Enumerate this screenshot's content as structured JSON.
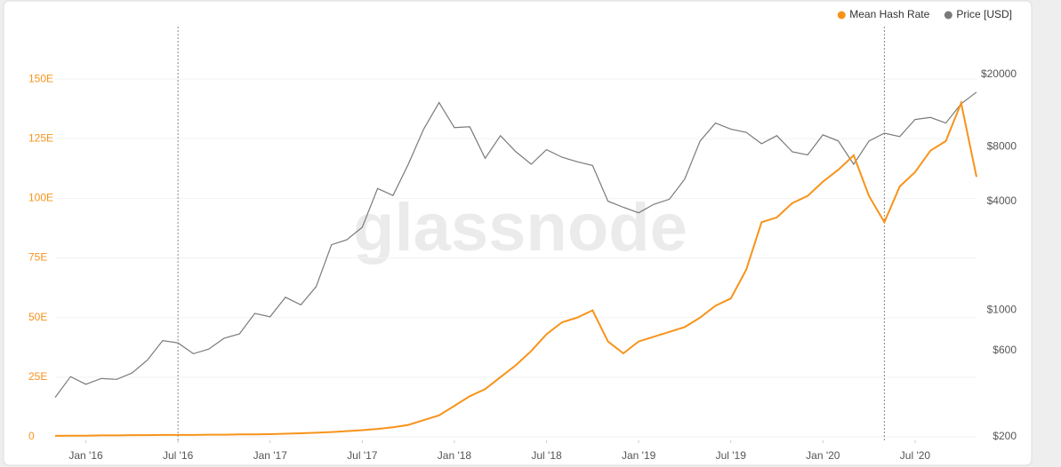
{
  "chart_data": {
    "type": "line",
    "watermark": "glassnode",
    "x": [
      "2015-11",
      "2015-12",
      "2016-01",
      "2016-02",
      "2016-03",
      "2016-04",
      "2016-05",
      "2016-06",
      "2016-07",
      "2016-08",
      "2016-09",
      "2016-10",
      "2016-11",
      "2016-12",
      "2017-01",
      "2017-02",
      "2017-03",
      "2017-04",
      "2017-05",
      "2017-06",
      "2017-07",
      "2017-08",
      "2017-09",
      "2017-10",
      "2017-11",
      "2017-12",
      "2018-01",
      "2018-02",
      "2018-03",
      "2018-04",
      "2018-05",
      "2018-06",
      "2018-07",
      "2018-08",
      "2018-09",
      "2018-10",
      "2018-11",
      "2018-12",
      "2019-01",
      "2019-02",
      "2019-03",
      "2019-04",
      "2019-05",
      "2019-06",
      "2019-07",
      "2019-08",
      "2019-09",
      "2019-10",
      "2019-11",
      "2019-12",
      "2020-01",
      "2020-02",
      "2020-03",
      "2020-04",
      "2020-05",
      "2020-06",
      "2020-07",
      "2020-08",
      "2020-09",
      "2020-10",
      "2020-11"
    ],
    "series": [
      {
        "name": "Mean Hash Rate",
        "color": "#f7931a",
        "axis": "y",
        "values": [
          0.4,
          0.5,
          0.5,
          0.6,
          0.6,
          0.7,
          0.7,
          0.8,
          0.8,
          0.8,
          0.9,
          0.9,
          1.0,
          1.0,
          1.1,
          1.3,
          1.5,
          1.7,
          2.0,
          2.4,
          2.8,
          3.3,
          4.0,
          5.0,
          7.0,
          9.0,
          13,
          17,
          20,
          25,
          30,
          36,
          43,
          48,
          50,
          53,
          40,
          35,
          40,
          42,
          44,
          46,
          50,
          55,
          58,
          70,
          90,
          92,
          98,
          101,
          107,
          112,
          118,
          101,
          90,
          105,
          111,
          120,
          124,
          140,
          109
        ]
      },
      {
        "name": "Price [USD]",
        "color": "#7a7a7a",
        "axis": "y2",
        "values": [
          330,
          430,
          390,
          420,
          415,
          450,
          530,
          680,
          660,
          575,
          610,
          700,
          740,
          960,
          920,
          1180,
          1070,
          1350,
          2300,
          2450,
          2870,
          4700,
          4300,
          6400,
          10000,
          14000,
          10200,
          10300,
          6900,
          9200,
          7500,
          6400,
          7700,
          7000,
          6600,
          6300,
          4000,
          3700,
          3450,
          3850,
          4100,
          5300,
          8600,
          10800,
          10000,
          9600,
          8300,
          9200,
          7500,
          7200,
          9300,
          8600,
          6400,
          8600,
          9500,
          9100,
          11300,
          11600,
          10800,
          13800,
          16000
        ]
      }
    ],
    "annotation_lines": [
      "2016-07",
      "2020-05"
    ],
    "xlim": [
      "2015-11",
      "2020-11"
    ],
    "xticks": [
      {
        "value": "2016-01",
        "label": "Jan '16"
      },
      {
        "value": "2016-07",
        "label": "Jul '16"
      },
      {
        "value": "2017-01",
        "label": "Jan '17"
      },
      {
        "value": "2017-07",
        "label": "Jul '17"
      },
      {
        "value": "2018-01",
        "label": "Jan '18"
      },
      {
        "value": "2018-07",
        "label": "Jul '18"
      },
      {
        "value": "2019-01",
        "label": "Jan '19"
      },
      {
        "value": "2019-07",
        "label": "Jul '19"
      },
      {
        "value": "2020-01",
        "label": "Jan '20"
      },
      {
        "value": "2020-07",
        "label": "Jul '20"
      }
    ],
    "ylim": [
      0,
      172
    ],
    "yticks": [
      0,
      {
        "value": 25,
        "label": "25E"
      },
      {
        "value": 50,
        "label": "50E"
      },
      {
        "value": 75,
        "label": "75E"
      },
      {
        "value": 100,
        "label": "100E"
      },
      {
        "value": 125,
        "label": "125E"
      },
      {
        "value": 150,
        "label": "150E"
      }
    ],
    "y2lim": [
      200,
      36800
    ],
    "y2scale": "log",
    "y2ticks": [
      {
        "value": 200,
        "label": "$200"
      },
      {
        "value": 600,
        "label": "$600"
      },
      {
        "value": 1000,
        "label": "$1000"
      },
      {
        "value": 4000,
        "label": "$4000"
      },
      {
        "value": 8000,
        "label": "$8000"
      },
      {
        "value": 20000,
        "label": "$20000"
      }
    ],
    "grid": true,
    "legend": "top-right"
  }
}
